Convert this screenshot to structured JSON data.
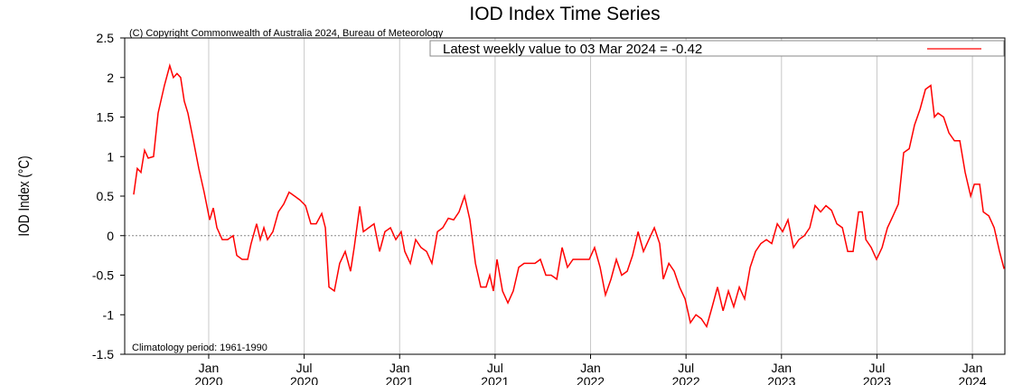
{
  "chart_data": {
    "type": "line",
    "title": "IOD Index Time Series",
    "ylabel": "IOD Index (°C)",
    "annotations": [
      "(C) Copyright Commonwealth of Australia 2024, Bureau of Meteorology",
      "Climatology period: 1961-1990"
    ],
    "legend": "upper right",
    "grid": true,
    "xlim": [
      2019.56,
      2024.17
    ],
    "ylim": [
      -1.5,
      2.5
    ],
    "yticks": [
      {
        "value": 2.5,
        "label": "2.5"
      },
      2,
      1.5,
      1,
      0.5,
      0,
      -0.5,
      -1,
      -1.5
    ],
    "xticks": [
      {
        "value": 2020,
        "label": "Jan 2020"
      },
      {
        "value": 2020.5,
        "label": "Jul 2020"
      },
      {
        "value": 2021,
        "label": "Jan 2021"
      },
      {
        "value": 2021.5,
        "label": "Jul 2021"
      },
      {
        "value": 2022,
        "label": "Jan 2022"
      },
      {
        "value": 2022.5,
        "label": "Jul 2022"
      },
      {
        "value": 2023,
        "label": "Jan 2023"
      },
      {
        "value": 2023.5,
        "label": "Jul 2023"
      },
      {
        "value": 2024,
        "label": "Jan 2024"
      }
    ],
    "x": [
      2019.607,
      2019.626,
      2019.645,
      2019.664,
      2019.683,
      2019.711,
      2019.735,
      2019.768,
      2019.796,
      2019.815,
      2019.834,
      2019.853,
      2019.872,
      2019.891,
      2019.92,
      2019.948,
      2019.976,
      2020.005,
      2020.024,
      2020.043,
      2020.071,
      2020.099,
      2020.128,
      2020.147,
      2020.175,
      2020.204,
      2020.222,
      2020.251,
      2020.27,
      2020.289,
      2020.308,
      2020.336,
      2020.365,
      2020.393,
      2020.421,
      2020.45,
      2020.478,
      2020.507,
      2020.535,
      2020.563,
      2020.592,
      2020.611,
      2020.63,
      2020.658,
      2020.686,
      2020.715,
      2020.743,
      2020.762,
      2020.791,
      2020.81,
      2020.838,
      2020.866,
      2020.895,
      2020.923,
      2020.952,
      2020.98,
      2021.008,
      2021.027,
      2021.056,
      2021.084,
      2021.112,
      2021.141,
      2021.169,
      2021.198,
      2021.226,
      2021.255,
      2021.283,
      2021.311,
      2021.34,
      2021.368,
      2021.397,
      2021.425,
      2021.453,
      2021.472,
      2021.491,
      2021.51,
      2021.539,
      2021.567,
      2021.595,
      2021.624,
      2021.652,
      2021.681,
      2021.709,
      2021.737,
      2021.766,
      2021.794,
      2021.823,
      2021.851,
      2021.879,
      2021.908,
      2021.936,
      2021.965,
      2021.993,
      2022.021,
      2022.05,
      2022.078,
      2022.107,
      2022.135,
      2022.163,
      2022.192,
      2022.22,
      2022.249,
      2022.277,
      2022.305,
      2022.334,
      2022.362,
      2022.381,
      2022.41,
      2022.438,
      2022.466,
      2022.495,
      2022.523,
      2022.552,
      2022.58,
      2022.608,
      2022.637,
      2022.665,
      2022.694,
      2022.722,
      2022.75,
      2022.779,
      2022.807,
      2022.836,
      2022.864,
      2022.892,
      2022.921,
      2022.949,
      2022.978,
      2023.006,
      2023.034,
      2023.063,
      2023.091,
      2023.12,
      2023.148,
      2023.176,
      2023.205,
      2023.233,
      2023.262,
      2023.29,
      2023.319,
      2023.347,
      2023.375,
      2023.404,
      2023.423,
      2023.442,
      2023.47,
      2023.498,
      2023.527,
      2023.555,
      2023.584,
      2023.612,
      2023.64,
      2023.669,
      2023.697,
      2023.726,
      2023.754,
      2023.782,
      2023.801,
      2023.82,
      2023.849,
      2023.877,
      2023.906,
      2023.934,
      2023.962,
      2023.991,
      2024.01,
      2024.038,
      2024.057,
      2024.086,
      2024.114,
      2024.142,
      2024.166
    ],
    "series": [
      {
        "name": "Latest weekly value to 03 Mar 2024 = -0.42",
        "color": "#ff0000",
        "values": [
          0.52,
          0.85,
          0.8,
          1.08,
          0.98,
          1.0,
          1.55,
          1.9,
          2.15,
          2.0,
          2.05,
          2.0,
          1.7,
          1.55,
          1.2,
          0.85,
          0.55,
          0.2,
          0.35,
          0.1,
          -0.05,
          -0.05,
          0.0,
          -0.25,
          -0.3,
          -0.3,
          -0.1,
          0.15,
          -0.05,
          0.1,
          -0.05,
          0.05,
          0.3,
          0.4,
          0.55,
          0.5,
          0.45,
          0.38,
          0.15,
          0.15,
          0.28,
          0.1,
          -0.65,
          -0.7,
          -0.35,
          -0.2,
          -0.45,
          -0.15,
          0.37,
          0.05,
          0.1,
          0.15,
          -0.2,
          0.05,
          0.1,
          -0.05,
          0.05,
          -0.2,
          -0.35,
          -0.05,
          -0.15,
          -0.2,
          -0.35,
          0.05,
          0.1,
          0.22,
          0.2,
          0.3,
          0.5,
          0.2,
          -0.35,
          -0.65,
          -0.65,
          -0.5,
          -0.7,
          -0.3,
          -0.7,
          -0.85,
          -0.7,
          -0.4,
          -0.35,
          -0.35,
          -0.35,
          -0.3,
          -0.5,
          -0.5,
          -0.55,
          -0.15,
          -0.4,
          -0.3,
          -0.3,
          -0.3,
          -0.3,
          -0.15,
          -0.4,
          -0.75,
          -0.55,
          -0.3,
          -0.5,
          -0.45,
          -0.25,
          0.05,
          -0.2,
          -0.05,
          0.1,
          -0.1,
          -0.55,
          -0.35,
          -0.45,
          -0.65,
          -0.8,
          -1.1,
          -1.0,
          -1.05,
          -1.15,
          -0.9,
          -0.65,
          -0.95,
          -0.7,
          -0.9,
          -0.65,
          -0.8,
          -0.4,
          -0.2,
          -0.1,
          -0.05,
          -0.1,
          0.15,
          0.05,
          0.2,
          -0.15,
          -0.05,
          0.0,
          0.1,
          0.38,
          0.3,
          0.38,
          0.32,
          0.15,
          0.1,
          -0.2,
          -0.2,
          0.3,
          0.3,
          -0.05,
          -0.15,
          -0.3,
          -0.15,
          0.1,
          0.25,
          0.4,
          1.05,
          1.1,
          1.4,
          1.6,
          1.85,
          1.9,
          1.5,
          1.55,
          1.5,
          1.3,
          1.2,
          1.2,
          0.8,
          0.5,
          0.65,
          0.65,
          0.3,
          0.25,
          0.1,
          -0.2,
          -0.42
        ]
      }
    ]
  }
}
